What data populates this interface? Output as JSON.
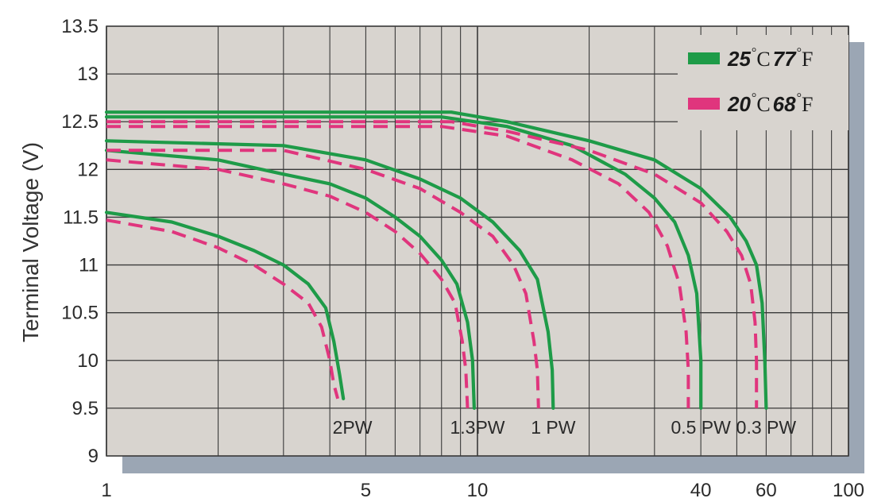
{
  "chart_data": {
    "type": "line",
    "xlabel": "",
    "ylabel": "Terminal Voltage (V)",
    "x_scale": "log",
    "xlim": [
      1,
      100
    ],
    "ylim": [
      9,
      13.5
    ],
    "x_ticks": [
      1,
      5,
      10,
      40,
      60,
      100
    ],
    "x_tick_labels": [
      "1",
      "5",
      "10",
      "40",
      "60",
      "100"
    ],
    "y_ticks": [
      9,
      9.5,
      10,
      10.5,
      11,
      11.5,
      12,
      12.5,
      13,
      13.5
    ],
    "y_tick_labels": [
      "9",
      "9.5",
      "10",
      "10.5",
      "11",
      "11.5",
      "12",
      "12.5",
      "13",
      "13.5"
    ],
    "grid": true,
    "legend_position": "top-right",
    "legend": [
      {
        "num1": "25",
        "unit1": "C",
        "num2": "77",
        "unit2": "F",
        "color": "#1e9b48",
        "style": "solid"
      },
      {
        "num1": "20",
        "unit1": "C",
        "num2": "68",
        "unit2": "F",
        "color": "#e0357d",
        "style": "dashed"
      }
    ],
    "colors": {
      "solid": "#1e9b48",
      "dashed": "#e0357d",
      "plot_bg": "#d8d4cf",
      "shadow": "#9ba6b4"
    },
    "series": [
      {
        "label": "2PW",
        "label_x": 4.6,
        "label_y": 9.3,
        "solid": [
          [
            1,
            11.55
          ],
          [
            1.5,
            11.45
          ],
          [
            2,
            11.3
          ],
          [
            2.5,
            11.15
          ],
          [
            3,
            11.0
          ],
          [
            3.5,
            10.8
          ],
          [
            3.9,
            10.55
          ],
          [
            4.1,
            10.2
          ],
          [
            4.25,
            9.85
          ],
          [
            4.35,
            9.6
          ]
        ],
        "dashed": [
          [
            1,
            11.47
          ],
          [
            1.5,
            11.35
          ],
          [
            2,
            11.18
          ],
          [
            2.5,
            11.0
          ],
          [
            3,
            10.8
          ],
          [
            3.5,
            10.6
          ],
          [
            3.8,
            10.35
          ],
          [
            4.0,
            10.0
          ],
          [
            4.1,
            9.75
          ],
          [
            4.2,
            9.6
          ]
        ]
      },
      {
        "label": "1.3PW",
        "label_x": 10.0,
        "label_y": 9.3,
        "solid": [
          [
            1,
            12.2
          ],
          [
            2,
            12.1
          ],
          [
            3,
            11.95
          ],
          [
            4,
            11.85
          ],
          [
            5,
            11.7
          ],
          [
            6,
            11.5
          ],
          [
            7,
            11.3
          ],
          [
            8,
            11.05
          ],
          [
            8.8,
            10.8
          ],
          [
            9.4,
            10.4
          ],
          [
            9.7,
            10.0
          ],
          [
            9.8,
            9.5
          ]
        ],
        "dashed": [
          [
            1,
            12.1
          ],
          [
            2,
            12.0
          ],
          [
            3,
            11.85
          ],
          [
            4,
            11.72
          ],
          [
            5,
            11.55
          ],
          [
            6,
            11.35
          ],
          [
            7,
            11.12
          ],
          [
            8,
            10.85
          ],
          [
            8.7,
            10.6
          ],
          [
            9.1,
            10.2
          ],
          [
            9.3,
            9.9
          ],
          [
            9.4,
            9.5
          ]
        ]
      },
      {
        "label": "1 PW",
        "label_x": 16.0,
        "label_y": 9.3,
        "solid": [
          [
            1,
            12.3
          ],
          [
            3,
            12.25
          ],
          [
            5,
            12.1
          ],
          [
            7,
            11.9
          ],
          [
            9,
            11.7
          ],
          [
            11,
            11.45
          ],
          [
            13,
            11.15
          ],
          [
            14.5,
            10.85
          ],
          [
            15.5,
            10.3
          ],
          [
            15.9,
            9.9
          ],
          [
            16.0,
            9.5
          ]
        ],
        "dashed": [
          [
            1,
            12.2
          ],
          [
            2,
            12.2
          ],
          [
            3,
            12.2
          ],
          [
            5,
            12.0
          ],
          [
            7,
            11.8
          ],
          [
            9,
            11.55
          ],
          [
            11,
            11.3
          ],
          [
            12.5,
            11.0
          ],
          [
            13.5,
            10.7
          ],
          [
            14.2,
            10.2
          ],
          [
            14.5,
            9.9
          ],
          [
            14.6,
            9.5
          ]
        ]
      },
      {
        "label": "0.5 PW",
        "label_x": 40.0,
        "label_y": 9.3,
        "solid": [
          [
            1,
            12.55
          ],
          [
            4,
            12.55
          ],
          [
            8,
            12.55
          ],
          [
            12,
            12.45
          ],
          [
            18,
            12.25
          ],
          [
            25,
            11.95
          ],
          [
            30,
            11.7
          ],
          [
            34,
            11.45
          ],
          [
            37,
            11.1
          ],
          [
            39,
            10.7
          ],
          [
            40,
            10.0
          ],
          [
            40,
            9.5
          ]
        ],
        "dashed": [
          [
            1,
            12.45
          ],
          [
            4,
            12.45
          ],
          [
            8,
            12.45
          ],
          [
            12,
            12.35
          ],
          [
            18,
            12.1
          ],
          [
            24,
            11.85
          ],
          [
            29,
            11.55
          ],
          [
            32.5,
            11.2
          ],
          [
            35,
            10.8
          ],
          [
            36.5,
            10.3
          ],
          [
            37,
            9.9
          ],
          [
            37,
            9.5
          ]
        ]
      },
      {
        "label": "0.3 PW",
        "label_x": 60.0,
        "label_y": 9.3,
        "solid": [
          [
            1,
            12.6
          ],
          [
            5,
            12.6
          ],
          [
            8.5,
            12.6
          ],
          [
            12,
            12.5
          ],
          [
            20,
            12.3
          ],
          [
            30,
            12.1
          ],
          [
            40,
            11.8
          ],
          [
            48,
            11.5
          ],
          [
            53,
            11.25
          ],
          [
            56.5,
            11.0
          ],
          [
            58.5,
            10.6
          ],
          [
            59.5,
            10.0
          ],
          [
            60,
            9.5
          ]
        ],
        "dashed": [
          [
            1,
            12.5
          ],
          [
            5,
            12.5
          ],
          [
            8.5,
            12.5
          ],
          [
            12,
            12.4
          ],
          [
            20,
            12.2
          ],
          [
            30,
            11.95
          ],
          [
            40,
            11.65
          ],
          [
            47,
            11.35
          ],
          [
            51.5,
            11.1
          ],
          [
            54.5,
            10.8
          ],
          [
            56,
            10.4
          ],
          [
            56.5,
            10.0
          ],
          [
            56.5,
            9.5
          ]
        ]
      }
    ]
  }
}
